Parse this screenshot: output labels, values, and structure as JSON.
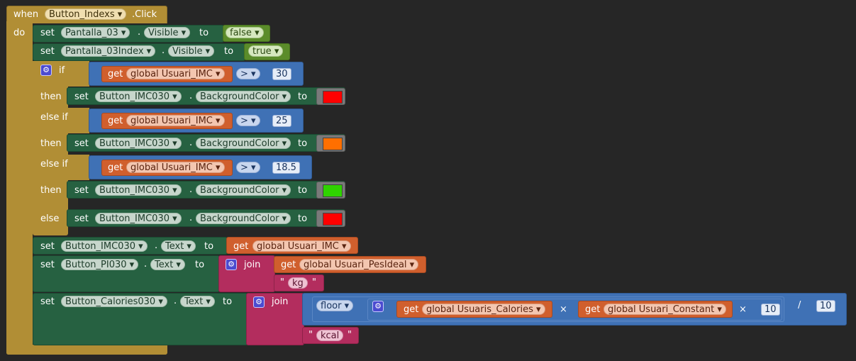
{
  "event": {
    "when": "when",
    "component": "Button_Indexs",
    "event": ".Click",
    "do": "do"
  },
  "kw": {
    "set": "set",
    "to": "to",
    "get": "get",
    "dot": ".",
    "if": "if",
    "then": "then",
    "else_if": "else if",
    "else": "else",
    "join": "join",
    "floor": "floor",
    "times": "×",
    "divide": "/",
    "quote": "\""
  },
  "s1": {
    "component": "Pantalla_03",
    "property": "Visible",
    "value": "false"
  },
  "s2": {
    "component": "Pantalla_03Index",
    "property": "Visible",
    "value": "true"
  },
  "cond": {
    "var": "global Usuari_IMC",
    "op": ">",
    "v1": "30",
    "v2": "25",
    "v3": "18.5"
  },
  "bg": {
    "component": "Button_IMC030",
    "property": "BackgroundColor"
  },
  "colors": {
    "red": "#ff0000",
    "orange": "#ff6f00",
    "green": "#2fd300",
    "red2": "#ff0000"
  },
  "s3": {
    "component": "Button_IMC030",
    "property": "Text",
    "var": "global Usuari_IMC"
  },
  "s4": {
    "component": "Button_PI030",
    "property": "Text",
    "var": "global Usuari_PesIdeal",
    "suffix": "kg"
  },
  "s5": {
    "component": "Button_Calories030",
    "property": "Text",
    "var1": "global Usuaris_Calories",
    "var2": "global Usuari_Constant",
    "n1": "10",
    "n2": "10",
    "suffix": "kcal"
  }
}
